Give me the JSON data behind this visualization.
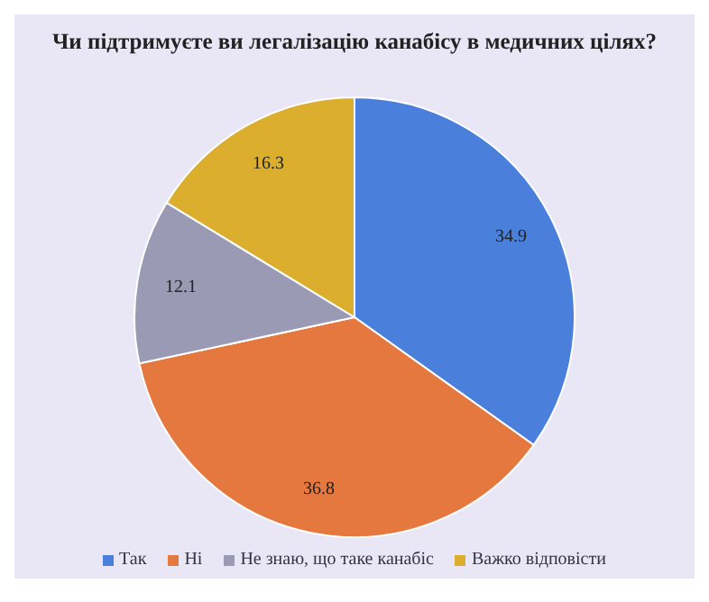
{
  "chart_data": {
    "type": "pie",
    "title": "Чи підтримуєте ви легалізацію канабісу в медичних цілях?",
    "categories": [
      "Так",
      "Ні",
      "Не знаю, що таке канабіс",
      "Важко відповісти"
    ],
    "values": [
      34.9,
      36.8,
      12.1,
      16.3
    ],
    "colors": [
      "#4a80dc",
      "#e5783f",
      "#9a9ab4",
      "#dcae2e"
    ],
    "data_labels": true,
    "legend": "bottom"
  }
}
